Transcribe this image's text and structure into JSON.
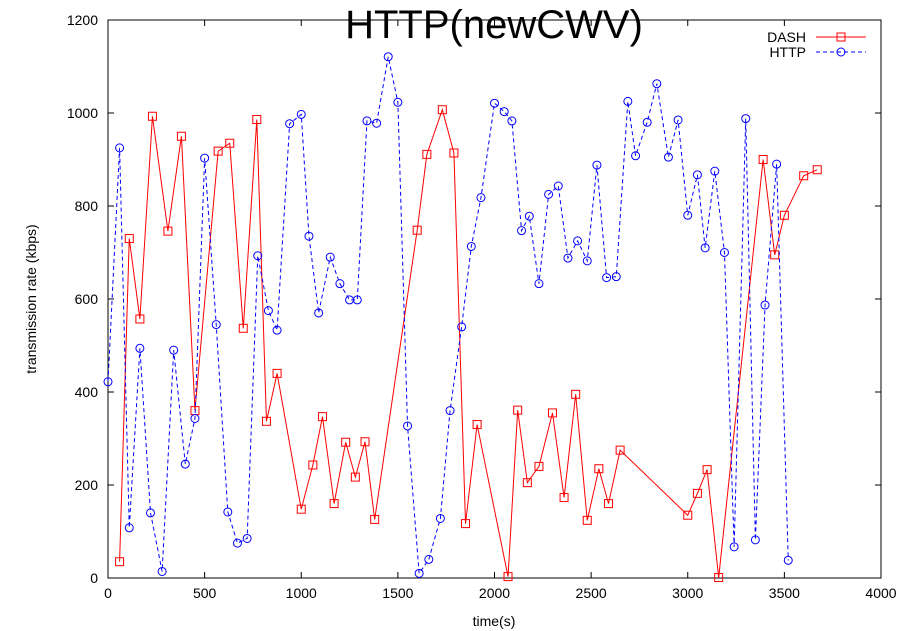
{
  "chart_data": {
    "type": "line",
    "title": "HTTP(newCWV)",
    "xlabel": "time(s)",
    "ylabel": "transmission rate (kbps)",
    "xlim": [
      0,
      4000
    ],
    "ylim": [
      0,
      1200
    ],
    "xticks": [
      0,
      500,
      1000,
      1500,
      2000,
      2500,
      3000,
      3500,
      4000
    ],
    "yticks": [
      0,
      200,
      400,
      600,
      800,
      1000,
      1200
    ],
    "grid": false,
    "legend_position": "top-right",
    "series": [
      {
        "name": "DASH",
        "color": "#ff0000",
        "line_style": "solid",
        "marker": "square",
        "points": [
          [
            60,
            35
          ],
          [
            110,
            730
          ],
          [
            165,
            557
          ],
          [
            230,
            993
          ],
          [
            310,
            746
          ],
          [
            380,
            950
          ],
          [
            450,
            360
          ],
          [
            570,
            918
          ],
          [
            630,
            935
          ],
          [
            700,
            537
          ],
          [
            770,
            986
          ],
          [
            820,
            337
          ],
          [
            875,
            440
          ],
          [
            1000,
            148
          ],
          [
            1060,
            243
          ],
          [
            1110,
            347
          ],
          [
            1170,
            160
          ],
          [
            1230,
            292
          ],
          [
            1280,
            217
          ],
          [
            1330,
            293
          ],
          [
            1380,
            126
          ],
          [
            1600,
            748
          ],
          [
            1650,
            911
          ],
          [
            1730,
            1007
          ],
          [
            1790,
            914
          ],
          [
            1850,
            117
          ],
          [
            1910,
            330
          ],
          [
            2070,
            3
          ],
          [
            2120,
            361
          ],
          [
            2170,
            205
          ],
          [
            2230,
            240
          ],
          [
            2300,
            355
          ],
          [
            2360,
            173
          ],
          [
            2420,
            395
          ],
          [
            2480,
            124
          ],
          [
            2540,
            235
          ],
          [
            2590,
            160
          ],
          [
            2650,
            275
          ],
          [
            3000,
            135
          ],
          [
            3050,
            182
          ],
          [
            3100,
            233
          ],
          [
            3160,
            1
          ],
          [
            3390,
            900
          ],
          [
            3450,
            695
          ],
          [
            3500,
            780
          ],
          [
            3600,
            865
          ],
          [
            3670,
            878
          ]
        ]
      },
      {
        "name": "HTTP",
        "color": "#0000ff",
        "line_style": "dashed",
        "marker": "circle",
        "points": [
          [
            0,
            422
          ],
          [
            60,
            925
          ],
          [
            110,
            108
          ],
          [
            165,
            494
          ],
          [
            220,
            140
          ],
          [
            280,
            14
          ],
          [
            340,
            490
          ],
          [
            400,
            245
          ],
          [
            450,
            343
          ],
          [
            500,
            903
          ],
          [
            560,
            545
          ],
          [
            620,
            142
          ],
          [
            670,
            75
          ],
          [
            720,
            85
          ],
          [
            775,
            693
          ],
          [
            830,
            575
          ],
          [
            875,
            533
          ],
          [
            940,
            977
          ],
          [
            1000,
            997
          ],
          [
            1040,
            735
          ],
          [
            1090,
            570
          ],
          [
            1150,
            690
          ],
          [
            1200,
            633
          ],
          [
            1250,
            598
          ],
          [
            1290,
            598
          ],
          [
            1340,
            983
          ],
          [
            1390,
            978
          ],
          [
            1450,
            1121
          ],
          [
            1500,
            1023
          ],
          [
            1550,
            327
          ],
          [
            1610,
            10
          ],
          [
            1660,
            40
          ],
          [
            1720,
            128
          ],
          [
            1770,
            360
          ],
          [
            1830,
            540
          ],
          [
            1880,
            713
          ],
          [
            1930,
            818
          ],
          [
            2000,
            1021
          ],
          [
            2050,
            1003
          ],
          [
            2090,
            983
          ],
          [
            2140,
            747
          ],
          [
            2180,
            778
          ],
          [
            2230,
            633
          ],
          [
            2280,
            825
          ],
          [
            2330,
            843
          ],
          [
            2380,
            688
          ],
          [
            2430,
            725
          ],
          [
            2480,
            682
          ],
          [
            2530,
            888
          ],
          [
            2580,
            646
          ],
          [
            2630,
            648
          ],
          [
            2690,
            1025
          ],
          [
            2730,
            908
          ],
          [
            2790,
            980
          ],
          [
            2840,
            1063
          ],
          [
            2900,
            905
          ],
          [
            2950,
            985
          ],
          [
            3000,
            780
          ],
          [
            3050,
            867
          ],
          [
            3090,
            710
          ],
          [
            3140,
            875
          ],
          [
            3190,
            700
          ],
          [
            3240,
            67
          ],
          [
            3300,
            988
          ],
          [
            3350,
            82
          ],
          [
            3400,
            587
          ],
          [
            3460,
            890
          ],
          [
            3520,
            38
          ]
        ]
      }
    ]
  }
}
